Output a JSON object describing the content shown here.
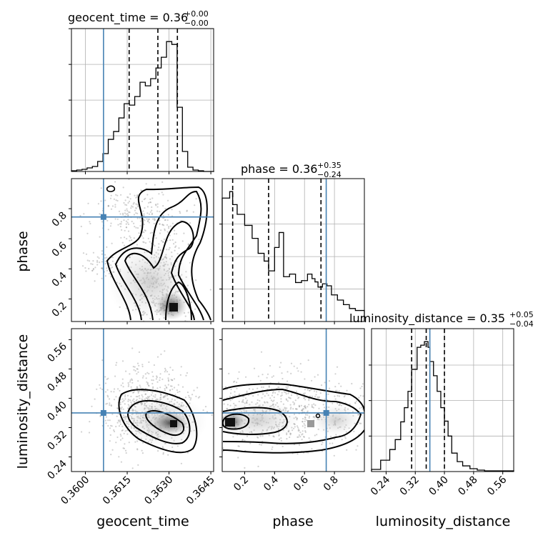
{
  "chart_data": {
    "type": "corner",
    "parameters": [
      "geocent_time",
      "phase",
      "luminosity_distance"
    ],
    "truths": [
      0.36065,
      0.745,
      0.36
    ],
    "truth_color": "#4682b4",
    "titles": [
      {
        "param": "geocent_time",
        "text": "geocent_time = 0.36",
        "sup": "+0.00",
        "sub": "−0.00"
      },
      {
        "param": "phase",
        "text": "phase = 0.36",
        "sup": "+0.35",
        "sub": "−0.24"
      },
      {
        "param": "luminosity_distance",
        "text": "luminosity_distance = 0.35",
        "sup": "+0.05",
        "sub": "−0.04"
      }
    ],
    "ranges": [
      [
        0.3595,
        0.3646
      ],
      [
        0.05,
        1.0
      ],
      [
        0.2,
        0.59
      ]
    ],
    "xticks": [
      {
        "values": [
          0.36,
          0.3615,
          0.363,
          0.3645
        ],
        "labels": [
          "0.3600",
          "0.3615",
          "0.3630",
          "0.3645"
        ]
      },
      {
        "values": [
          0.2,
          0.4,
          0.6,
          0.8
        ],
        "labels": [
          "0.2",
          "0.4",
          "0.6",
          "0.8"
        ]
      },
      {
        "values": [
          0.24,
          0.32,
          0.4,
          0.48,
          0.56
        ],
        "labels": [
          "0.24",
          "0.32",
          "0.40",
          "0.48",
          "0.56"
        ]
      }
    ],
    "yticks_phase": {
      "values": [
        0.2,
        0.4,
        0.6,
        0.8
      ],
      "labels": [
        "0.2",
        "0.4",
        "0.6",
        "0.8"
      ]
    },
    "yticks_distance": {
      "values": [
        0.24,
        0.32,
        0.4,
        0.48,
        0.56
      ],
      "labels": [
        "0.24",
        "0.32",
        "0.40",
        "0.48",
        "0.56"
      ]
    },
    "axis_labels": {
      "x": [
        "geocent_time",
        "phase",
        "luminosity_distance"
      ],
      "y": [
        "phase",
        "luminosity_distance"
      ]
    },
    "histograms": [
      {
        "param": "geocent_time",
        "bin_edges": [
          0.3595,
          0.35969,
          0.35988,
          0.36006,
          0.36025,
          0.36044,
          0.36063,
          0.36082,
          0.36101,
          0.3612,
          0.36139,
          0.36158,
          0.36177,
          0.36196,
          0.36215,
          0.36234,
          0.36253,
          0.36272,
          0.36291,
          0.3631,
          0.36329,
          0.36348,
          0.36367,
          0.36386,
          0.36405,
          0.36424,
          0.36443,
          0.36462
        ],
        "counts": [
          1,
          2,
          3,
          5,
          7,
          14,
          25,
          45,
          56,
          75,
          95,
          93,
          105,
          125,
          120,
          130,
          145,
          160,
          182,
          178,
          90,
          28,
          6,
          2,
          1,
          0,
          0
        ],
        "quantiles": [
          0.36157,
          0.3626,
          0.3633
        ],
        "grid_y": [
          50,
          100,
          150,
          200
        ]
      },
      {
        "param": "phase",
        "bin_edges": [
          0.05,
          0.1,
          0.12,
          0.15,
          0.2,
          0.25,
          0.29,
          0.33,
          0.36,
          0.4,
          0.43,
          0.46,
          0.5,
          0.54,
          0.58,
          0.62,
          0.65,
          0.67,
          0.69,
          0.72,
          0.75,
          0.78,
          0.82,
          0.86,
          0.9,
          0.94,
          1.0
        ],
        "counts": [
          190,
          200,
          180,
          165,
          148,
          128,
          105,
          93,
          78,
          114,
          137,
          69,
          73,
          60,
          63,
          73,
          66,
          61,
          53,
          58,
          55,
          41,
          33,
          26,
          20,
          17
        ],
        "quantiles": [
          0.12,
          0.36,
          0.71
        ],
        "grid_y": [
          50,
          100,
          150
        ]
      },
      {
        "param": "luminosity_distance",
        "bin_edges": [
          0.2,
          0.225,
          0.25,
          0.265,
          0.28,
          0.29,
          0.3,
          0.31,
          0.325,
          0.335,
          0.345,
          0.355,
          0.36,
          0.37,
          0.38,
          0.39,
          0.4,
          0.41,
          0.42,
          0.435,
          0.45,
          0.47,
          0.49,
          0.51,
          0.59
        ],
        "counts": [
          3,
          16,
          31,
          45,
          70,
          90,
          113,
          144,
          175,
          178,
          183,
          175,
          155,
          135,
          113,
          90,
          71,
          50,
          26,
          14,
          8,
          4,
          2,
          1
        ],
        "quantiles": [
          0.31,
          0.35,
          0.4
        ],
        "grid_y": [
          50,
          100,
          150
        ]
      }
    ],
    "panels_2d": [
      {
        "x": "geocent_time",
        "y": "phase"
      },
      {
        "x": "geocent_time",
        "y": "luminosity_distance"
      },
      {
        "x": "phase",
        "y": "luminosity_distance"
      }
    ]
  }
}
